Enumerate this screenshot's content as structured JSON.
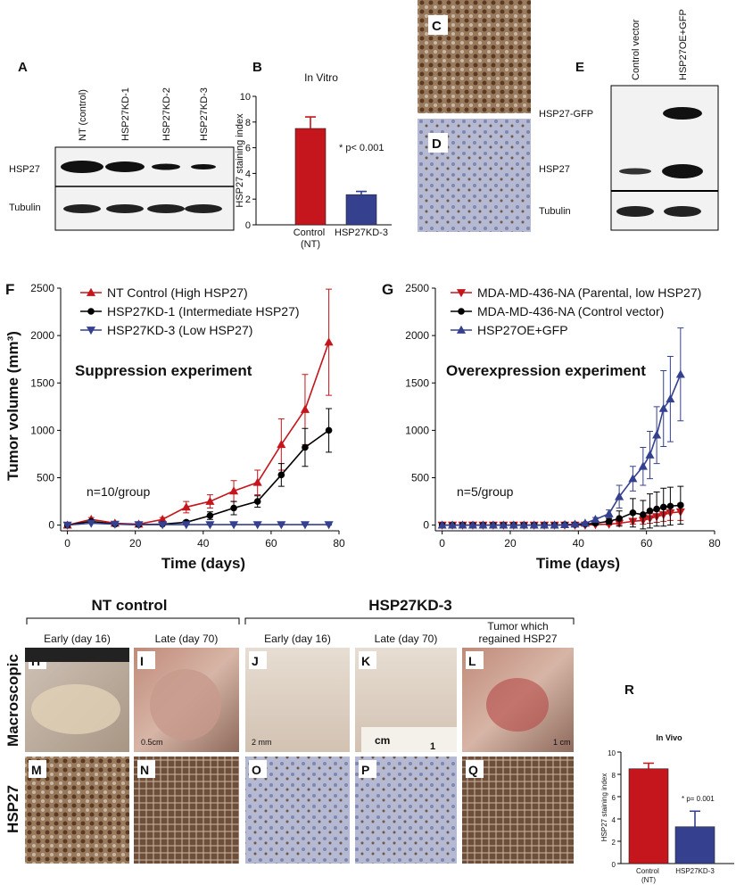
{
  "chart_data": [
    {
      "type": "bar",
      "panel": "B",
      "title": "In Vitro",
      "categories": [
        "Control (NT)",
        "HSP27KD-3"
      ],
      "values": [
        7.5,
        2.35
      ],
      "errors": [
        0.9,
        0.25
      ],
      "colors": [
        "#c4161c",
        "#35418f"
      ],
      "ylabel": "HSP27 staining index",
      "ylim": [
        0,
        10
      ],
      "yticks": [
        0,
        2,
        4,
        6,
        8,
        10
      ],
      "annotations": [
        "* p< 0.001"
      ]
    },
    {
      "type": "line",
      "panel": "F",
      "ylabel": "Tumor volume (mm³)",
      "xlabel": "Time (days)",
      "annotations": [
        "Suppression experiment",
        "n=10/group"
      ],
      "x": [
        0,
        7,
        14,
        21,
        28,
        35,
        42,
        49,
        56,
        63,
        70,
        77
      ],
      "series": [
        {
          "name": "NT Control (High HSP27)",
          "color": "#c4161c",
          "marker": "triangle",
          "values": [
            0,
            60,
            20,
            10,
            60,
            190,
            250,
            360,
            450,
            850,
            1220,
            1930
          ],
          "errors": [
            0,
            20,
            10,
            5,
            20,
            60,
            70,
            110,
            130,
            270,
            370,
            560
          ]
        },
        {
          "name": "HSP27KD-1 (Intermediate HSP27)",
          "color": "#000000",
          "marker": "circle",
          "values": [
            0,
            40,
            10,
            5,
            10,
            30,
            100,
            180,
            250,
            530,
            820,
            1000
          ],
          "errors": [
            0,
            10,
            5,
            5,
            5,
            20,
            40,
            70,
            60,
            120,
            200,
            230
          ]
        },
        {
          "name": "HSP27KD-3 (Low HSP27)",
          "color": "#35418f",
          "marker": "triangle-down",
          "values": [
            0,
            20,
            10,
            5,
            5,
            5,
            5,
            5,
            5,
            5,
            5,
            5
          ],
          "errors": [
            0,
            5,
            5,
            5,
            5,
            5,
            5,
            5,
            5,
            5,
            5,
            5
          ]
        }
      ],
      "xlim": [
        -2,
        80
      ],
      "xticks": [
        0,
        20,
        40,
        60,
        80
      ],
      "ylim": [
        -60,
        2500
      ],
      "yticks": [
        0,
        500,
        1000,
        1500,
        2000,
        2500
      ]
    },
    {
      "type": "line",
      "panel": "G",
      "xlabel": "Time (days)",
      "annotations": [
        "Overexpression experiment",
        "n=5/group"
      ],
      "x": [
        0,
        3,
        6,
        9,
        12,
        15,
        18,
        21,
        24,
        27,
        30,
        33,
        36,
        39,
        42,
        45,
        49,
        52,
        56,
        59,
        61,
        63,
        65,
        67,
        70
      ],
      "series": [
        {
          "name": "MDA-MD-436-NA (Parental, low HSP27)",
          "color": "#c4161c",
          "marker": "triangle-down",
          "values": [
            0,
            0,
            0,
            0,
            0,
            0,
            0,
            0,
            0,
            0,
            0,
            0,
            0,
            0,
            0,
            5,
            10,
            20,
            40,
            50,
            70,
            90,
            110,
            130,
            140
          ],
          "errors": [
            0,
            0,
            0,
            0,
            0,
            0,
            0,
            0,
            0,
            0,
            0,
            0,
            0,
            0,
            0,
            5,
            10,
            15,
            30,
            40,
            50,
            60,
            70,
            80,
            90
          ]
        },
        {
          "name": "MDA-MD-436-NA (Control vector)",
          "color": "#000000",
          "marker": "circle",
          "values": [
            0,
            0,
            0,
            0,
            0,
            0,
            0,
            0,
            0,
            0,
            0,
            0,
            5,
            5,
            10,
            20,
            40,
            70,
            130,
            110,
            150,
            170,
            190,
            200,
            210
          ],
          "errors": [
            0,
            0,
            0,
            0,
            0,
            0,
            0,
            0,
            0,
            0,
            0,
            0,
            5,
            5,
            10,
            20,
            30,
            80,
            150,
            150,
            180,
            180,
            200,
            200,
            200
          ]
        },
        {
          "name": "HSP27OE+GFP",
          "color": "#35418f",
          "marker": "triangle",
          "values": [
            0,
            0,
            0,
            0,
            0,
            0,
            0,
            0,
            0,
            0,
            0,
            0,
            5,
            10,
            20,
            60,
            120,
            300,
            490,
            620,
            740,
            950,
            1230,
            1330,
            1590
          ],
          "errors": [
            0,
            0,
            0,
            0,
            0,
            0,
            0,
            0,
            0,
            0,
            0,
            0,
            5,
            5,
            10,
            20,
            40,
            120,
            130,
            200,
            250,
            300,
            400,
            450,
            490
          ]
        }
      ],
      "xlim": [
        -2,
        80
      ],
      "xticks": [
        0,
        20,
        40,
        60,
        80
      ],
      "ylim": [
        -60,
        2500
      ],
      "yticks": [
        0,
        500,
        1000,
        1500,
        2000,
        2500
      ]
    },
    {
      "type": "bar",
      "panel": "R",
      "title": "In Vivo",
      "categories": [
        "Control (NT)",
        "HSP27KD-3"
      ],
      "values": [
        8.5,
        3.3
      ],
      "errors": [
        0.5,
        1.4
      ],
      "colors": [
        "#c4161c",
        "#35418f"
      ],
      "ylabel": "HSP27 staining index",
      "ylim": [
        0,
        10
      ],
      "yticks": [
        0,
        2,
        4,
        6,
        8,
        10
      ],
      "annotations": [
        "* p= 0.001"
      ]
    }
  ],
  "blot_a": {
    "letter": "A",
    "lanes": [
      "NT (control)",
      "HSP27KD-1",
      "HSP27KD-2",
      "HSP27KD-3"
    ],
    "rows": [
      "HSP27",
      "Tubulin"
    ]
  },
  "blot_e": {
    "letter": "E",
    "lanes": [
      "Control vector",
      "HSP27OE+GFP"
    ],
    "rows": [
      "HSP27-GFP",
      "HSP27",
      "Tubulin"
    ]
  },
  "ihc": {
    "letters": [
      "C",
      "D"
    ]
  },
  "in_vivo": {
    "groups": [
      "NT control",
      "HSP27KD-3"
    ],
    "row_labels": [
      "Macroscopic",
      "HSP27"
    ],
    "columns": [
      {
        "header": [
          "Early (day 16)"
        ],
        "letters": [
          "H",
          "M"
        ]
      },
      {
        "header": [
          "Late (day 70)"
        ],
        "letters": [
          "I",
          "N"
        ]
      },
      {
        "header": [
          "Early (day 16)"
        ],
        "letters": [
          "J",
          "O"
        ]
      },
      {
        "header": [
          "Late (day 70)"
        ],
        "letters": [
          "K",
          "P"
        ]
      },
      {
        "header": [
          "Tumor which",
          "regained HSP27"
        ],
        "letters": [
          "L",
          "Q"
        ]
      }
    ],
    "scale_labels": [
      "0.5cm",
      "2 mm",
      "cm",
      "1",
      "1 cm"
    ]
  }
}
